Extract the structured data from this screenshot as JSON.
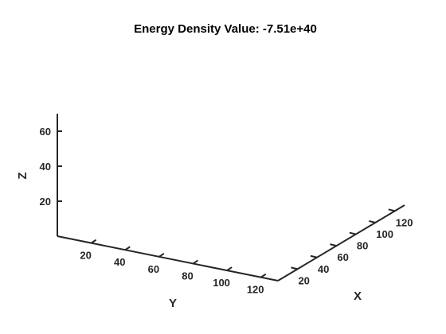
{
  "chart_data": {
    "type": "scatter",
    "projection": "3d",
    "title": "Energy Density Value: -7.51e+40",
    "xlabel": "X",
    "ylabel": "Y",
    "zlabel": "Z",
    "x_ticks": [
      "20",
      "40",
      "60",
      "80",
      "100",
      "120"
    ],
    "y_ticks": [
      "20",
      "40",
      "60",
      "80",
      "100",
      "120"
    ],
    "z_ticks": [
      "20",
      "40",
      "60"
    ],
    "xlim": [
      0,
      130
    ],
    "ylim": [
      0,
      130
    ],
    "zlim": [
      0,
      70
    ],
    "grid": false,
    "series": []
  }
}
